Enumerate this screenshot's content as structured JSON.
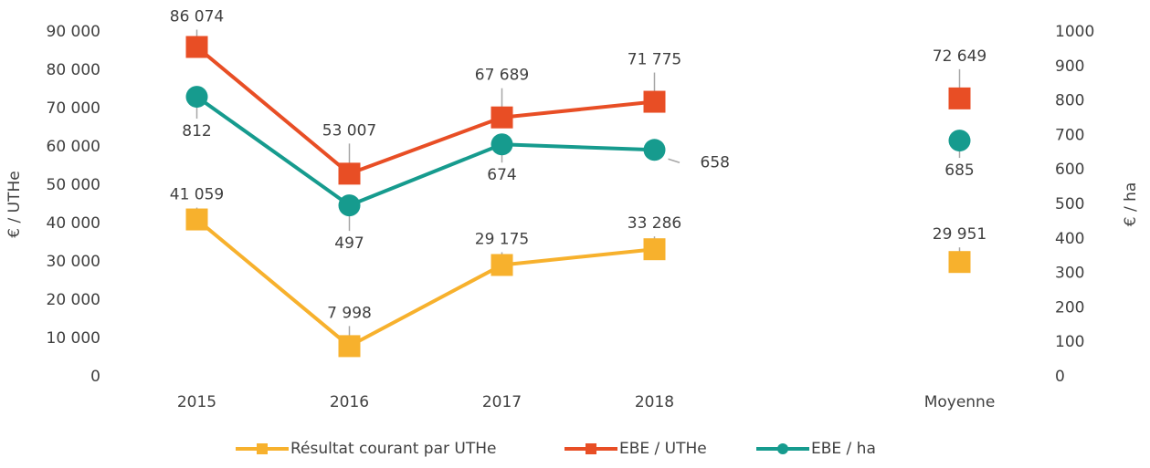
{
  "chart_data": {
    "type": "line",
    "categories": [
      "2015",
      "2016",
      "2017",
      "2018",
      null,
      "Moyenne"
    ],
    "ylabel": "€ / UTHe",
    "y2label": "€ / ha",
    "ylim": [
      0,
      90000
    ],
    "yticks": [
      0,
      {
        "value": 10000,
        "label": "10 000"
      },
      {
        "value": 20000,
        "label": "20 000"
      },
      {
        "value": 30000,
        "label": "30 000"
      },
      {
        "value": 40000,
        "label": "40 000"
      },
      {
        "value": 50000,
        "label": "50 000"
      },
      {
        "value": 60000,
        "label": "60 000"
      },
      {
        "value": 70000,
        "label": "70 000"
      },
      {
        "value": 80000,
        "label": "80 000"
      },
      {
        "value": 90000,
        "label": "90 000"
      }
    ],
    "y2lim": [
      0,
      1000
    ],
    "y2ticks": [
      0,
      100,
      200,
      300,
      400,
      500,
      600,
      700,
      800,
      900,
      1000
    ],
    "legend": "bottom",
    "series": [
      {
        "name": "Résultat courant par UTHe",
        "color": "#f7b12d",
        "marker": "square",
        "axis": "y",
        "values": [
          41059,
          7998,
          29175,
          33286,
          null,
          29951
        ],
        "value_labels": [
          "41 059",
          "7 998",
          "29 175",
          "33 286",
          null,
          "29 951"
        ]
      },
      {
        "name": "EBE / UTHe",
        "color": "#e84e25",
        "marker": "square",
        "axis": "y",
        "values": [
          86074,
          53007,
          67689,
          71775,
          null,
          72649
        ],
        "value_labels": [
          "86 074",
          "53 007",
          "67 689",
          "71 775",
          null,
          "72 649"
        ]
      },
      {
        "name": "EBE / ha",
        "color": "#169b8e",
        "marker": "circle",
        "axis": "y2",
        "values": [
          812,
          497,
          674,
          658,
          null,
          685
        ]
      }
    ]
  }
}
